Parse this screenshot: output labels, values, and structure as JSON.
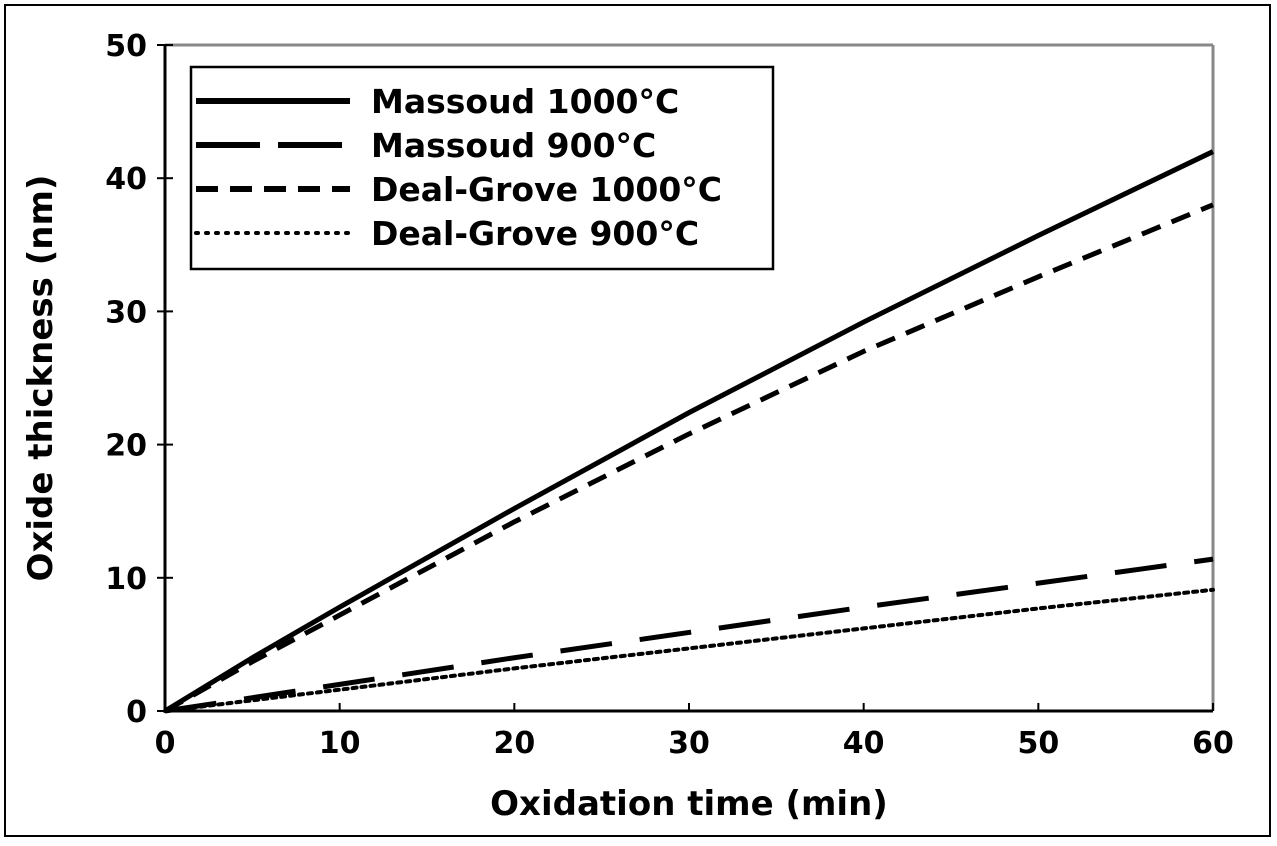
{
  "chart_data": {
    "type": "line",
    "title": "",
    "xlabel": "Oxidation time (min)",
    "ylabel": "Oxide thickness (nm)",
    "xlim": [
      0,
      60
    ],
    "ylim": [
      0,
      50
    ],
    "xticks": [
      "0",
      "10",
      "20",
      "30",
      "40",
      "50",
      "60"
    ],
    "yticks": [
      "0",
      "10",
      "20",
      "30",
      "40",
      "50"
    ],
    "grid": false,
    "legend_position": "top-left",
    "x": [
      0,
      5,
      10,
      20,
      30,
      40,
      50,
      60
    ],
    "series": [
      {
        "name": "Massoud 1000°C",
        "style": "solid",
        "values": [
          0,
          4.0,
          7.8,
          15.2,
          22.4,
          29.2,
          35.7,
          42.0
        ]
      },
      {
        "name": "Massoud 900°C",
        "style": "longdash",
        "values": [
          0,
          1.0,
          2.0,
          4.0,
          5.9,
          7.8,
          9.6,
          11.4
        ]
      },
      {
        "name": "Deal-Grove 1000°C",
        "style": "dash",
        "values": [
          0,
          3.7,
          7.2,
          14.2,
          20.8,
          27.0,
          32.6,
          38.0
        ]
      },
      {
        "name": "Deal-Grove 900°C",
        "style": "dot",
        "values": [
          0,
          0.8,
          1.6,
          3.2,
          4.7,
          6.2,
          7.7,
          9.1
        ]
      }
    ]
  }
}
